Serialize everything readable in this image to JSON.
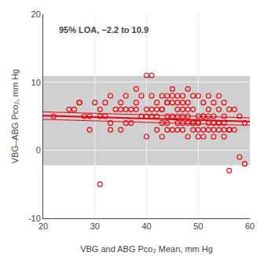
{
  "chart_data": {
    "type": "scatter",
    "annotation": "95% LOA, −2.2 to 10.9",
    "xlabel": "VBG and ABG Pco₂ Mean, mm Hg",
    "ylabel": "VBG–ABG Pco₂, mm Hg",
    "xlim": [
      20,
      60
    ],
    "ylim": [
      -10,
      20
    ],
    "xticks": [
      20,
      30,
      40,
      50,
      60
    ],
    "yticks": [
      -10,
      0,
      10,
      20
    ],
    "grid": true,
    "band": {
      "lower": -2.2,
      "upper": 10.9,
      "color": "#d0d0d0"
    },
    "series": [
      {
        "type": "scatter",
        "marker": "open circle",
        "color": "#e8000d",
        "x": [
          22,
          25,
          27,
          28,
          29,
          30,
          31,
          31,
          32,
          32,
          33,
          33,
          34,
          35,
          35,
          36,
          36,
          37,
          37,
          38,
          38,
          39,
          39,
          40,
          40,
          41,
          41,
          41,
          42,
          42,
          43,
          43,
          44,
          44,
          44,
          45,
          45,
          45,
          46,
          46,
          46,
          47,
          47,
          47,
          48,
          48,
          48,
          49,
          49,
          50,
          50,
          50,
          51,
          51,
          52,
          52,
          53,
          53,
          54,
          54,
          55,
          55,
          56,
          57,
          58,
          59,
          26,
          27,
          29,
          31,
          33,
          35,
          36,
          38,
          40,
          42,
          43,
          44,
          45,
          46,
          47,
          48,
          49,
          50,
          51,
          52,
          53,
          54,
          55,
          56,
          57,
          59,
          42,
          43,
          44,
          45,
          46,
          47,
          48,
          49,
          50,
          51,
          52,
          53,
          54,
          55,
          56,
          40,
          41,
          43,
          44,
          46,
          47,
          48,
          49,
          50,
          51,
          52,
          53,
          54,
          55,
          56,
          58
        ],
        "values": [
          5,
          6,
          7,
          5,
          3,
          7,
          -5,
          5,
          5,
          7,
          4,
          8,
          6,
          3,
          6,
          6,
          4,
          6,
          4,
          9,
          6,
          8,
          5,
          6,
          5,
          11,
          8,
          5,
          7,
          3,
          6,
          2,
          8,
          5,
          3,
          9,
          7,
          3,
          8,
          5,
          3,
          8,
          6,
          3,
          9,
          6,
          2,
          8,
          3,
          8,
          5,
          2,
          7,
          2,
          8,
          3,
          7,
          2,
          8,
          4,
          7,
          2,
          6,
          6,
          5,
          4,
          6,
          7,
          5,
          6,
          3,
          7,
          8,
          7,
          2,
          5,
          4,
          7,
          5,
          7,
          5,
          7,
          6,
          4,
          5,
          6,
          5,
          6,
          5,
          3,
          3,
          -2,
          6,
          8,
          4,
          8,
          4,
          4,
          5,
          4,
          3,
          3,
          4,
          3,
          3,
          3,
          3,
          11,
          6,
          6,
          7,
          6,
          7,
          4,
          4,
          4,
          5,
          5,
          4,
          4,
          4,
          -3,
          -1
        ]
      },
      {
        "type": "line",
        "line_style": "solid",
        "color": "#e8000d",
        "x": [
          20,
          60
        ],
        "values": [
          5.09,
          4.21
        ]
      },
      {
        "type": "line",
        "line_style": "solid",
        "color": "#e8000d",
        "x": [
          20,
          60
        ],
        "values": [
          5.64,
          4.76
        ]
      },
      {
        "type": "line",
        "line_style": "solid",
        "color": "#e8000d",
        "x": [
          20,
          60
        ],
        "values": [
          4.54,
          3.66
        ]
      }
    ]
  }
}
